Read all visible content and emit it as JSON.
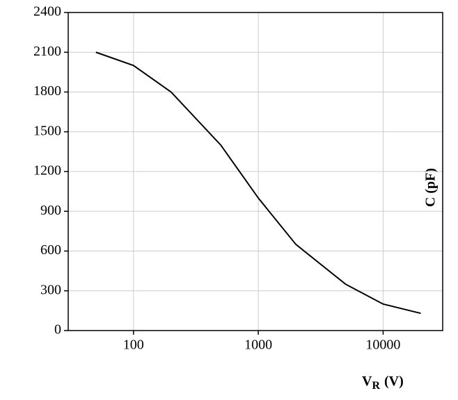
{
  "chart_data": {
    "type": "line",
    "y_label": "C (pF)",
    "x_label_main": "V",
    "x_label_sub": "R",
    "x_label_rest": "(V)",
    "x": [
      50,
      100,
      200,
      500,
      1000,
      2000,
      5000,
      10000,
      20000
    ],
    "series": [
      {
        "name": "C",
        "color": "#000000",
        "values": [
          2100,
          2000,
          1800,
          1400,
          1000,
          650,
          350,
          200,
          130
        ]
      }
    ],
    "xlim": [
      30,
      30000
    ],
    "xticks": [
      100,
      1000,
      10000
    ],
    "log_x": true,
    "ylim": [
      0,
      2400
    ],
    "yticks": [
      0,
      300,
      600,
      900,
      1200,
      1500,
      1800,
      2100,
      2400
    ],
    "grid": true
  }
}
